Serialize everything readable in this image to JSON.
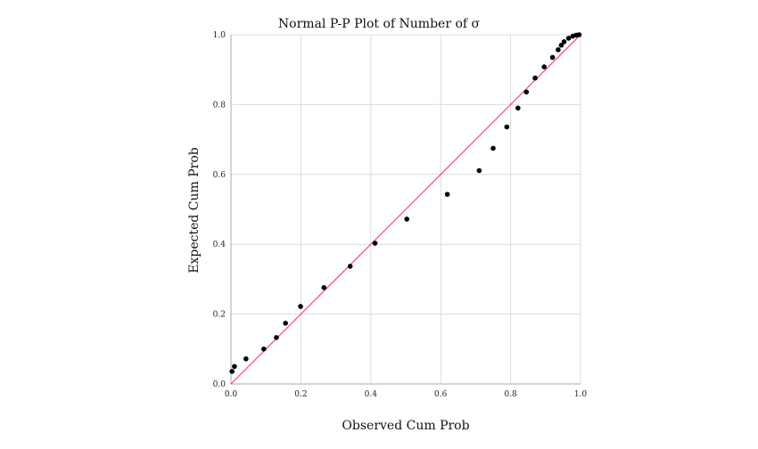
{
  "chart_data": {
    "type": "scatter",
    "title": "Normal P-P Plot of Number of σ",
    "xlabel": "Observed Cum Prob",
    "ylabel": "Expected Cum Prob",
    "xlim": [
      0.0,
      1.0
    ],
    "ylim": [
      0.0,
      1.0
    ],
    "xticks": [
      "0.0",
      "0.2",
      "0.4",
      "0.6",
      "0.8",
      "1.0"
    ],
    "yticks": [
      "0.0",
      "0.2",
      "0.4",
      "0.6",
      "0.8",
      "1.0"
    ],
    "grid": true,
    "reference_line": {
      "from": [
        0.0,
        0.0
      ],
      "to": [
        1.0,
        1.0
      ]
    },
    "colors": {
      "points": "#000000",
      "reference_line": "#e8335a",
      "grid": "#dcdcdc",
      "axis": "#aaaaaa"
    },
    "points": [
      {
        "x": 0.003,
        "y": 0.036
      },
      {
        "x": 0.01,
        "y": 0.05
      },
      {
        "x": 0.043,
        "y": 0.072
      },
      {
        "x": 0.094,
        "y": 0.1
      },
      {
        "x": 0.13,
        "y": 0.133
      },
      {
        "x": 0.156,
        "y": 0.174
      },
      {
        "x": 0.199,
        "y": 0.222
      },
      {
        "x": 0.266,
        "y": 0.276
      },
      {
        "x": 0.341,
        "y": 0.337
      },
      {
        "x": 0.412,
        "y": 0.403
      },
      {
        "x": 0.503,
        "y": 0.472
      },
      {
        "x": 0.619,
        "y": 0.543
      },
      {
        "x": 0.71,
        "y": 0.611
      },
      {
        "x": 0.75,
        "y": 0.675
      },
      {
        "x": 0.789,
        "y": 0.736
      },
      {
        "x": 0.821,
        "y": 0.79
      },
      {
        "x": 0.845,
        "y": 0.836
      },
      {
        "x": 0.87,
        "y": 0.876
      },
      {
        "x": 0.896,
        "y": 0.908
      },
      {
        "x": 0.92,
        "y": 0.935
      },
      {
        "x": 0.936,
        "y": 0.957
      },
      {
        "x": 0.945,
        "y": 0.97
      },
      {
        "x": 0.953,
        "y": 0.98
      },
      {
        "x": 0.966,
        "y": 0.99
      },
      {
        "x": 0.978,
        "y": 0.996
      },
      {
        "x": 0.988,
        "y": 0.999
      },
      {
        "x": 0.996,
        "y": 1.0
      }
    ]
  }
}
